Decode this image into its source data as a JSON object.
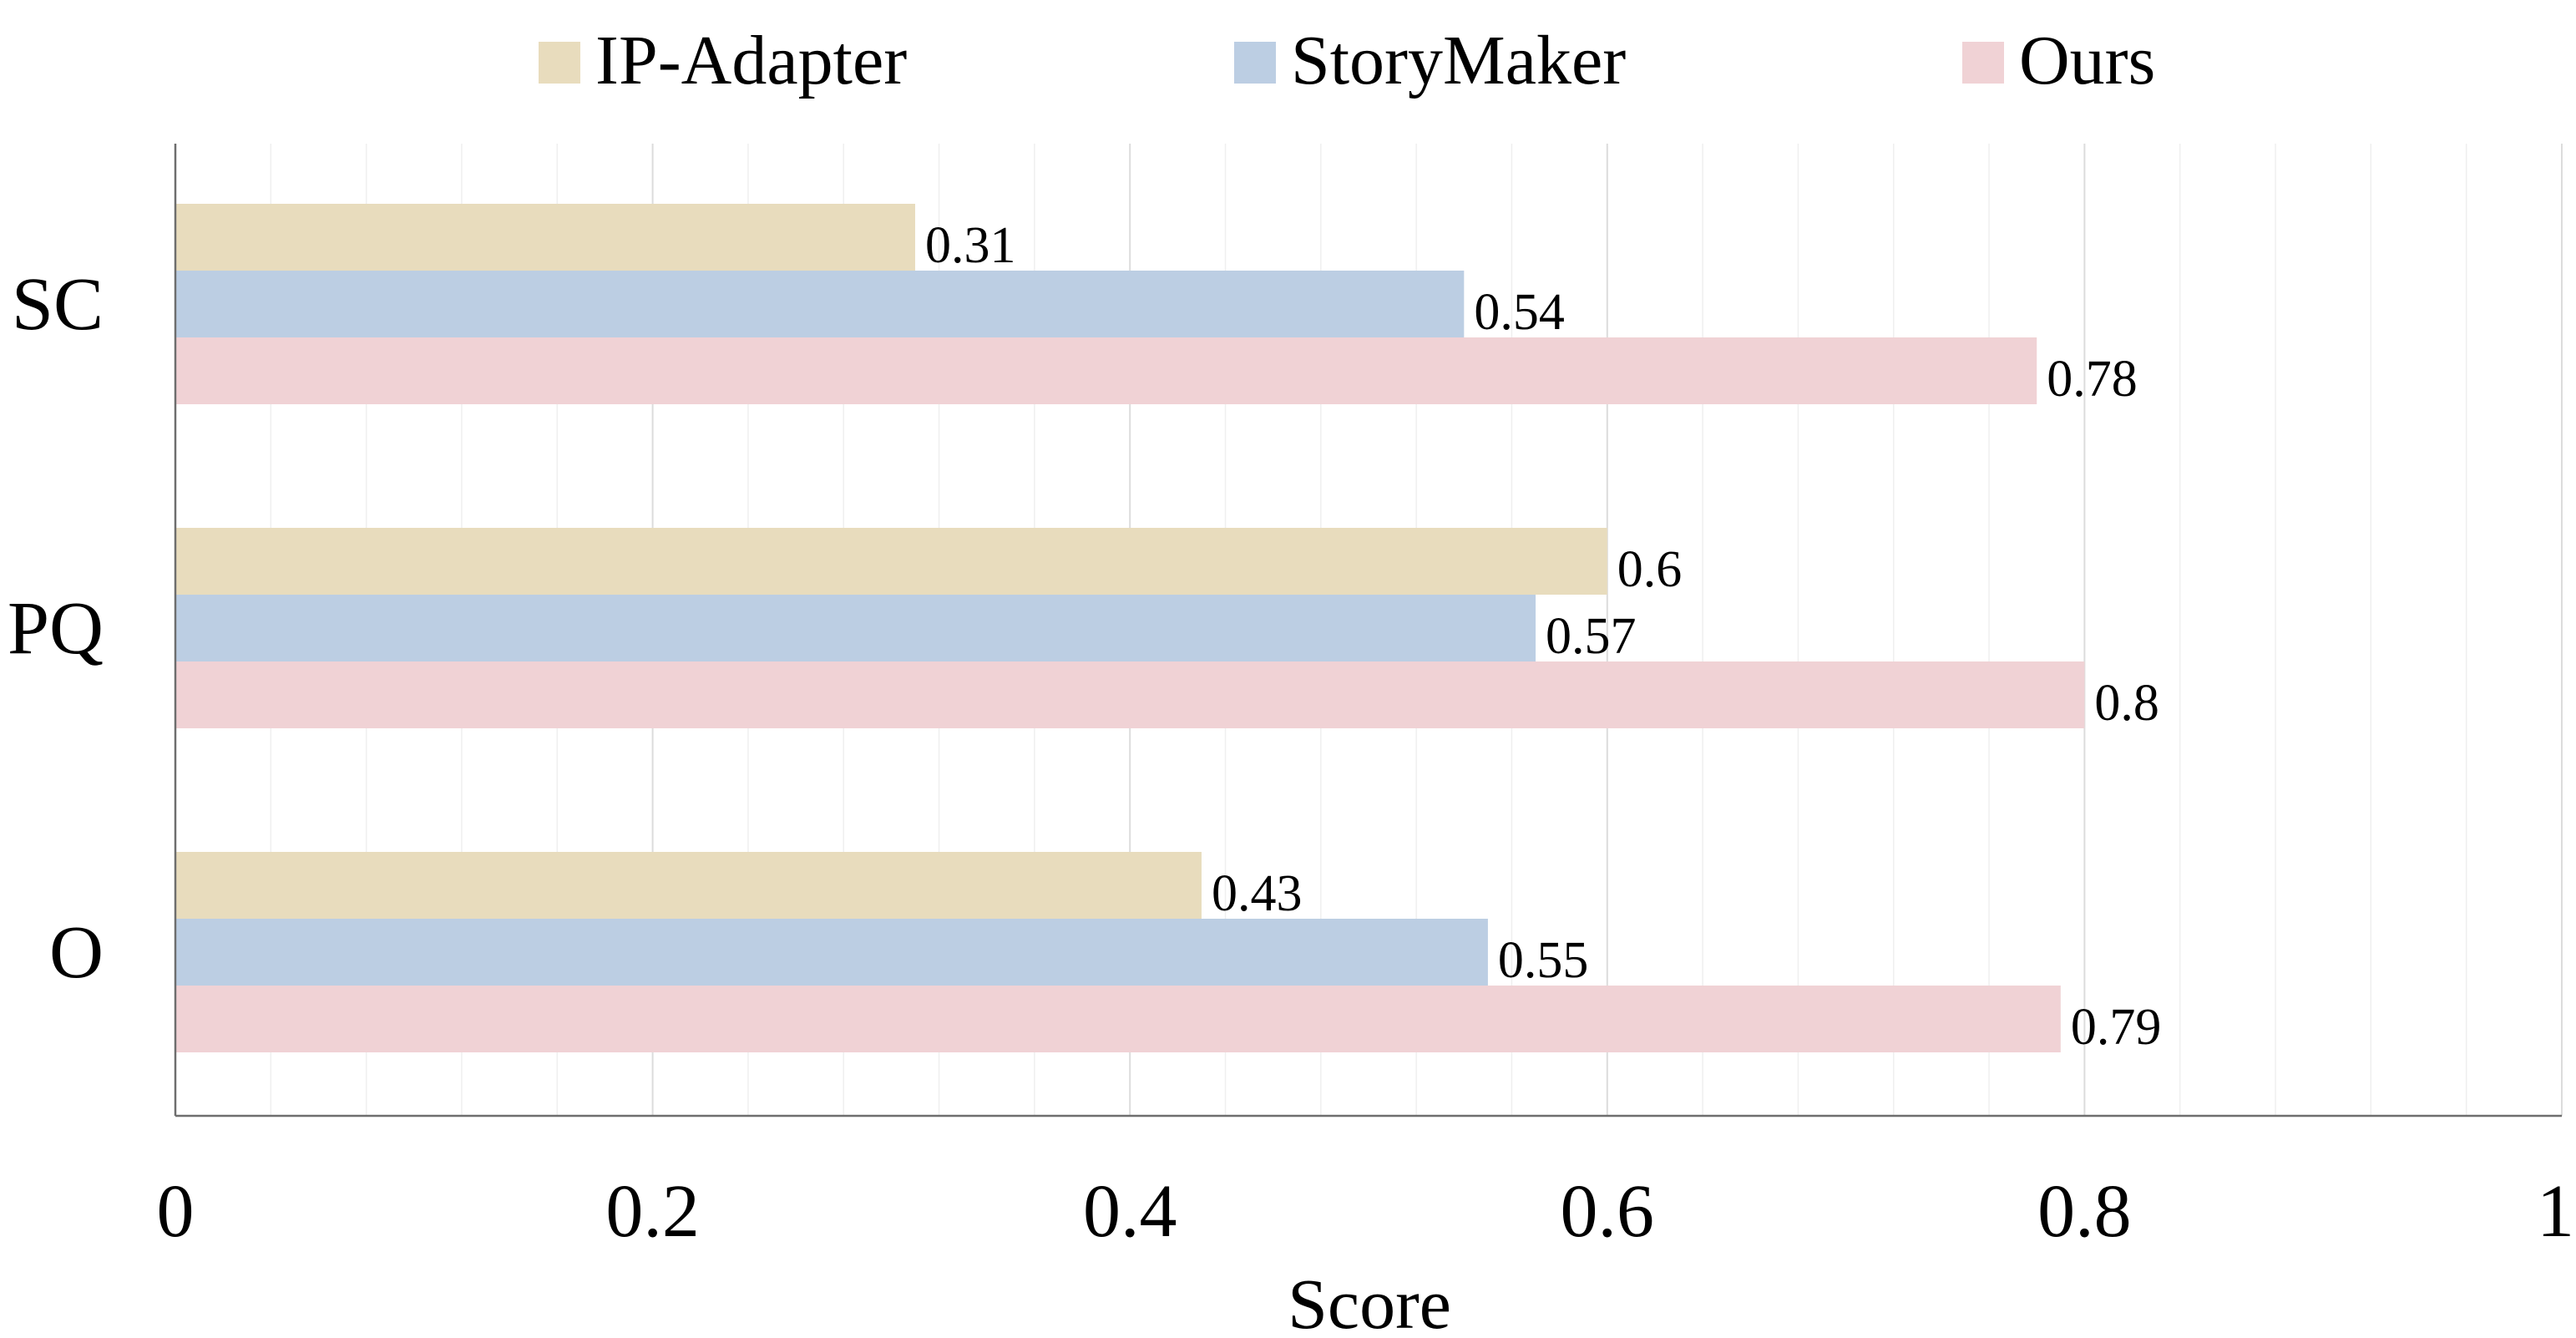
{
  "chart_data": {
    "type": "bar",
    "orientation": "horizontal",
    "categories": [
      "SC",
      "PQ",
      "O"
    ],
    "series": [
      {
        "name": "IP-Adapter",
        "color": "#e8dcbd",
        "values": [
          0.31,
          0.6,
          0.43
        ]
      },
      {
        "name": "StoryMaker",
        "color": "#bccee3",
        "values": [
          0.54,
          0.57,
          0.55
        ]
      },
      {
        "name": "Ours",
        "color": "#f0d2d5",
        "values": [
          0.78,
          0.8,
          0.79
        ]
      }
    ],
    "data_labels": [
      [
        "0.31",
        "0.6",
        "0.43"
      ],
      [
        "0.54",
        "0.57",
        "0.55"
      ],
      [
        "0.78",
        "0.8",
        "0.79"
      ]
    ],
    "xlabel": "Score",
    "ylabel": "",
    "xlim": [
      0,
      1
    ],
    "xticks": [
      0,
      0.2,
      0.4,
      0.6,
      0.8,
      1
    ],
    "xtick_labels": [
      "0",
      "0.2",
      "0.4",
      "0.6",
      "0.8",
      "1"
    ],
    "grid": true,
    "legend_position": "top"
  }
}
